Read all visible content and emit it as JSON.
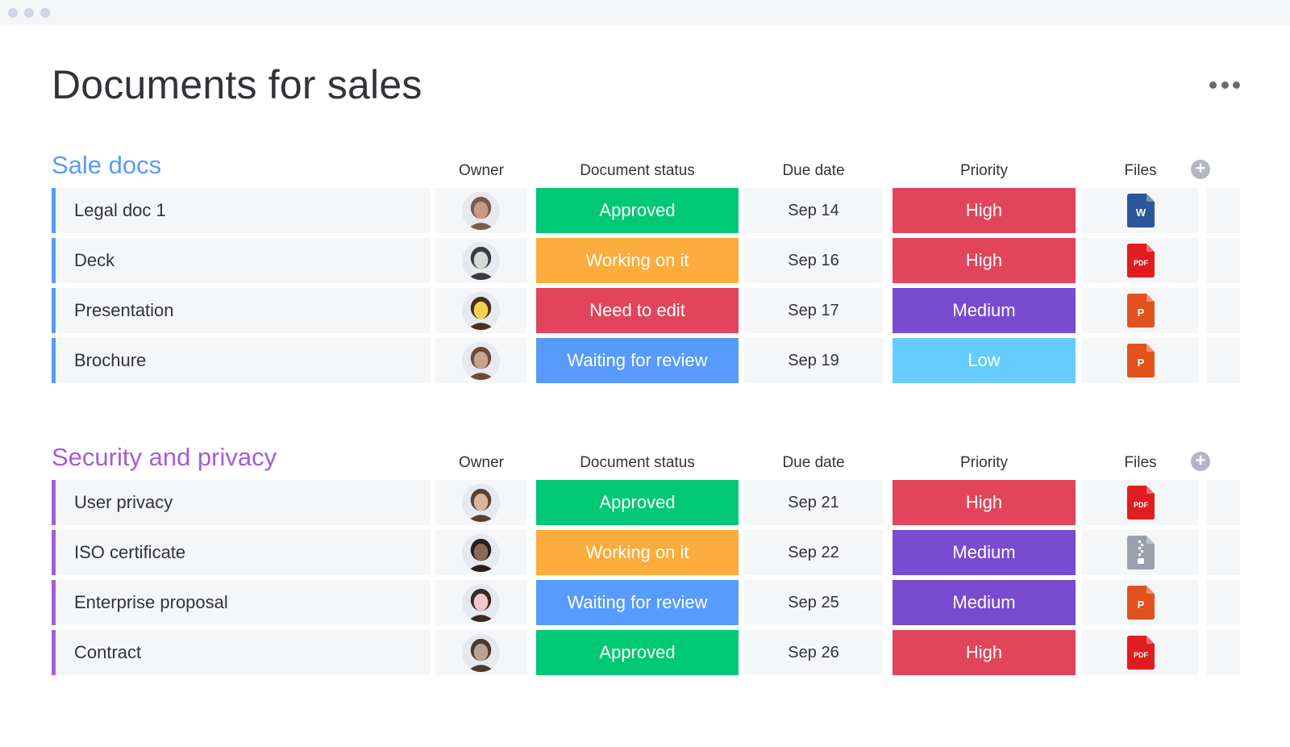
{
  "colors": {
    "approved": "#00c875",
    "working": "#fdab3d",
    "need_edit": "#e2445c",
    "waiting": "#579bfc",
    "high": "#e2445c",
    "medium": "#784bd1",
    "low": "#66ccff",
    "group1_accent": "#579bfc",
    "group2_accent": "#a25ddc"
  },
  "page": {
    "title": "Documents for sales",
    "more_icon": "more-horizontal-icon"
  },
  "columns": {
    "owner": "Owner",
    "status": "Document status",
    "due": "Due date",
    "priority": "Priority",
    "files": "Files",
    "add_icon": "plus-circle-icon"
  },
  "groups": [
    {
      "title": "Sale docs",
      "rows": [
        {
          "name": "Legal doc 1",
          "status": "Approved",
          "status_key": "approved",
          "due": "Sep 14",
          "priority": "High",
          "priority_key": "high",
          "file": "word"
        },
        {
          "name": "Deck",
          "status": "Working on it",
          "status_key": "working",
          "due": "Sep 16",
          "priority": "High",
          "priority_key": "high",
          "file": "pdf"
        },
        {
          "name": "Presentation",
          "status": "Need to edit",
          "status_key": "need_edit",
          "due": "Sep 17",
          "priority": "Medium",
          "priority_key": "medium",
          "file": "ppt"
        },
        {
          "name": "Brochure",
          "status": "Waiting for review",
          "status_key": "waiting",
          "due": "Sep 19",
          "priority": "Low",
          "priority_key": "low",
          "file": "ppt"
        }
      ]
    },
    {
      "title": "Security and privacy",
      "rows": [
        {
          "name": "User privacy",
          "status": "Approved",
          "status_key": "approved",
          "due": "Sep 21",
          "priority": "High",
          "priority_key": "high",
          "file": "pdf"
        },
        {
          "name": "ISO certificate",
          "status": "Working on it",
          "status_key": "working",
          "due": "Sep 22",
          "priority": "Medium",
          "priority_key": "medium",
          "file": "zip"
        },
        {
          "name": "Enterprise proposal",
          "status": "Waiting for review",
          "status_key": "waiting",
          "due": "Sep 25",
          "priority": "Medium",
          "priority_key": "medium",
          "file": "ppt"
        },
        {
          "name": "Contract",
          "status": "Approved",
          "status_key": "approved",
          "due": "Sep 26",
          "priority": "High",
          "priority_key": "high",
          "file": "pdf"
        }
      ]
    }
  ],
  "file_icons": {
    "word": {
      "icon": "word-file-icon",
      "color": "#2b579a",
      "label": "W"
    },
    "pdf": {
      "icon": "pdf-file-icon",
      "color": "#e11d21",
      "label": "PDF"
    },
    "ppt": {
      "icon": "powerpoint-file-icon",
      "color": "#e2521e",
      "label": "P"
    },
    "zip": {
      "icon": "zip-file-icon",
      "color": "#9aa0ab",
      "label": ""
    }
  }
}
